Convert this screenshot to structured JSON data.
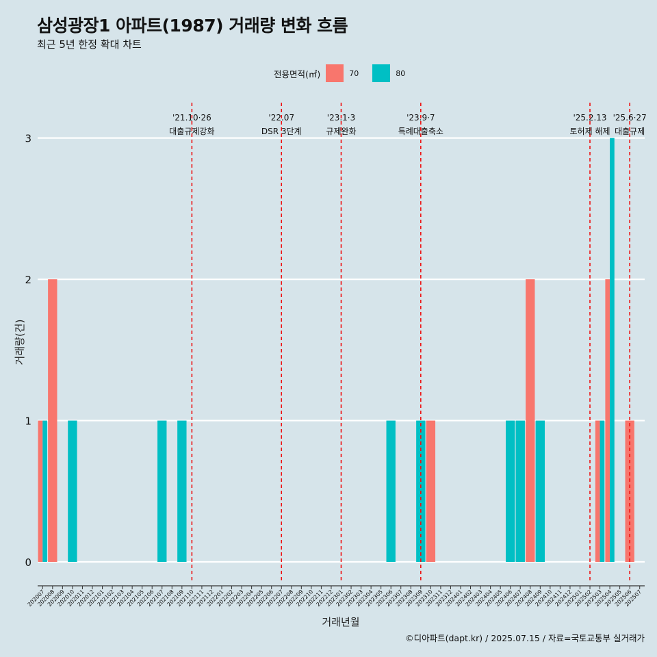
{
  "title": "삼성광장1 아파트(1987) 거래량 변화 흐름",
  "subtitle": "최근 5년 한정 확대 차트",
  "caption": "©디아파트(dapt.kr) / 2025.07.15 / 자료=국토교통부 실거래가",
  "legend": {
    "title": "전용면적(㎡)",
    "items": [
      {
        "label": "70",
        "color": "#f8766d"
      },
      {
        "label": "80",
        "color": "#00bfc4"
      }
    ]
  },
  "chart_data": {
    "type": "bar",
    "xlabel": "거래년월",
    "ylabel": "거래량(건)",
    "ylim": [
      -0.15,
      3.25
    ],
    "yticks": [
      0,
      1,
      2,
      3
    ],
    "grid": true,
    "legend_position": "top",
    "categories": [
      "202007",
      "202008",
      "202009",
      "202010",
      "202011",
      "202012",
      "202101",
      "202102",
      "202103",
      "202104",
      "202105",
      "202106",
      "202107",
      "202108",
      "202109",
      "202110",
      "202111",
      "202112",
      "202201",
      "202202",
      "202203",
      "202204",
      "202205",
      "202206",
      "202207",
      "202208",
      "202209",
      "202210",
      "202211",
      "202212",
      "202301",
      "202302",
      "202303",
      "202304",
      "202305",
      "202306",
      "202307",
      "202308",
      "202309",
      "202310",
      "202311",
      "202312",
      "202401",
      "202402",
      "202403",
      "202404",
      "202405",
      "202406",
      "202407",
      "202408",
      "202409",
      "202410",
      "202411",
      "202412",
      "202501",
      "202502",
      "202503",
      "202504",
      "202505",
      "202506",
      "202507"
    ],
    "series": [
      {
        "name": "70",
        "color": "#f8766d",
        "values": [
          1,
          2,
          0,
          0,
          0,
          0,
          0,
          0,
          0,
          0,
          0,
          0,
          0,
          0,
          0,
          0,
          0,
          0,
          0,
          0,
          0,
          0,
          0,
          0,
          0,
          0,
          0,
          0,
          0,
          0,
          0,
          0,
          0,
          0,
          0,
          0,
          0,
          0,
          0,
          1,
          0,
          0,
          0,
          0,
          0,
          0,
          0,
          0,
          0,
          2,
          0,
          0,
          0,
          0,
          0,
          0,
          1,
          2,
          0,
          1,
          0
        ]
      },
      {
        "name": "80",
        "color": "#00bfc4",
        "values": [
          1,
          0,
          0,
          1,
          0,
          0,
          0,
          0,
          0,
          0,
          0,
          0,
          1,
          0,
          1,
          0,
          0,
          0,
          0,
          0,
          0,
          0,
          0,
          0,
          0,
          0,
          0,
          0,
          0,
          0,
          0,
          0,
          0,
          0,
          0,
          1,
          0,
          0,
          1,
          0,
          0,
          0,
          0,
          0,
          0,
          0,
          0,
          1,
          1,
          0,
          1,
          0,
          0,
          0,
          0,
          0,
          1,
          3,
          0,
          0,
          0
        ]
      }
    ],
    "annotations": [
      {
        "x": "202110",
        "date": "'21.10·26",
        "label": "대출규제강화"
      },
      {
        "x": "202207",
        "date": "'22.07",
        "label": "DSR 3단계"
      },
      {
        "x": "202301",
        "date": "'23.1·3",
        "label": "규제완화"
      },
      {
        "x": "202309",
        "date": "'23.9·7",
        "label": "특례대출축소"
      },
      {
        "x": "202502",
        "date": "'25.2.13",
        "label": "토허제 해제"
      },
      {
        "x": "202506",
        "date": "'25.6·27",
        "label": "대출규제"
      }
    ]
  }
}
